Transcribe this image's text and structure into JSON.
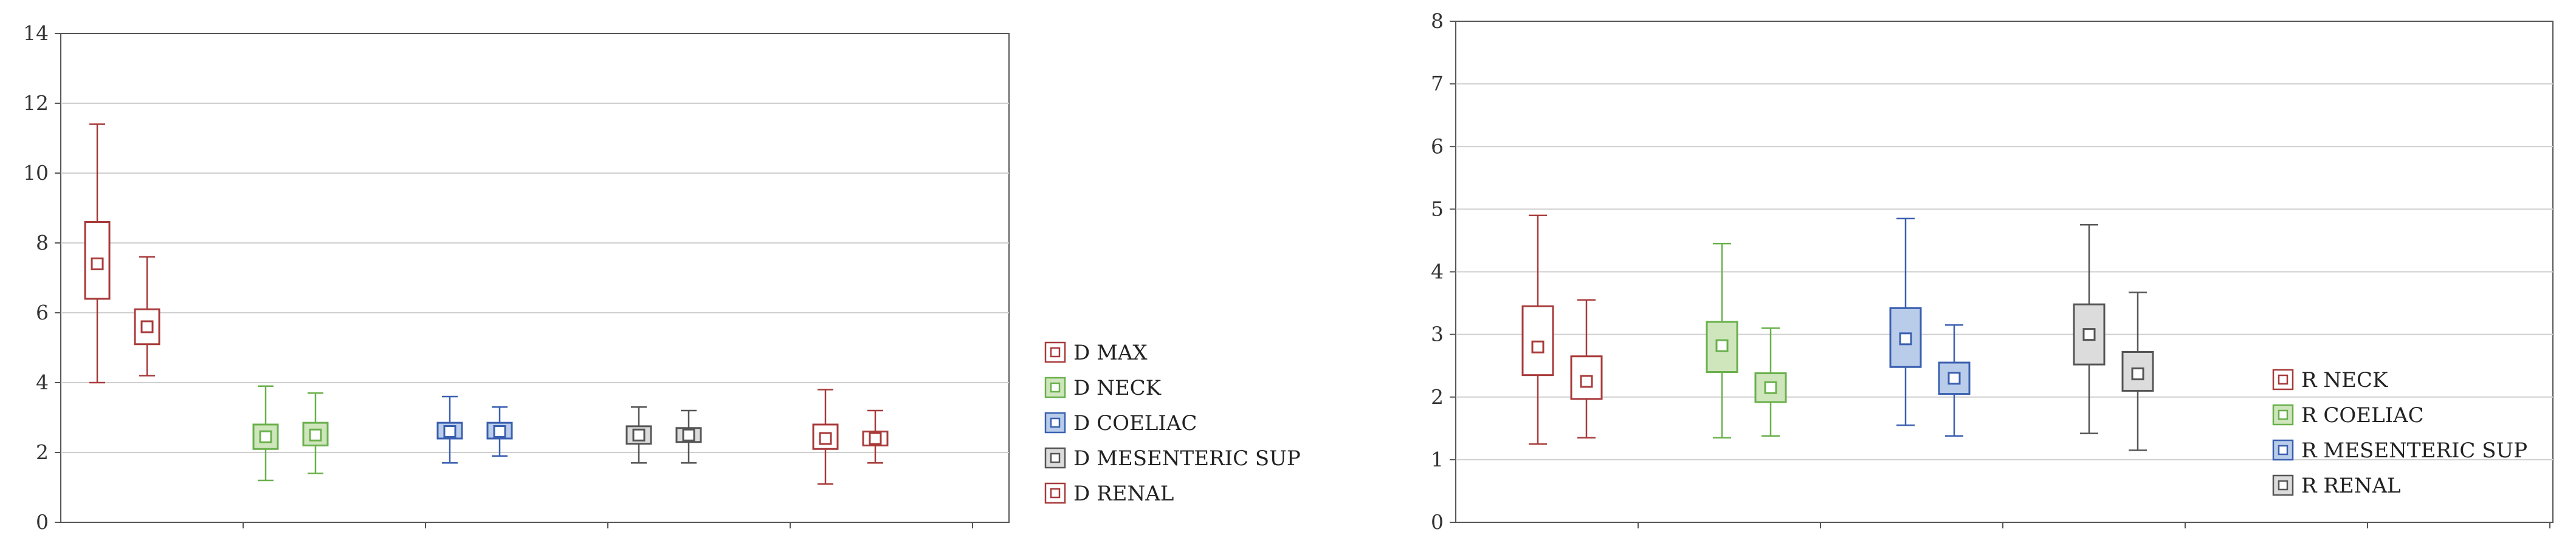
{
  "chart_data": [
    {
      "type": "box",
      "title": "",
      "xlabel": "",
      "ylabel": "",
      "ylim": [
        0,
        14
      ],
      "yticks": [
        0,
        2,
        4,
        6,
        8,
        10,
        12,
        14
      ],
      "grid": "horizontal",
      "legend_position": "right",
      "series": [
        {
          "name": "D MAX",
          "color": "#a83a3a",
          "fill": "#ffffff",
          "boxes": [
            {
              "min": 4.0,
              "q1": 6.4,
              "median": 7.4,
              "q3": 8.6,
              "max": 11.4
            },
            {
              "min": 4.2,
              "q1": 5.1,
              "median": 5.6,
              "q3": 6.1,
              "max": 7.6
            }
          ]
        },
        {
          "name": "D NECK",
          "color": "#6ab04c",
          "fill": "#cfe6bd",
          "boxes": [
            {
              "min": 1.2,
              "q1": 2.1,
              "median": 2.45,
              "q3": 2.8,
              "max": 3.9
            },
            {
              "min": 1.4,
              "q1": 2.2,
              "median": 2.5,
              "q3": 2.85,
              "max": 3.7
            }
          ]
        },
        {
          "name": "D COELIAC",
          "color": "#3a5fb0",
          "fill": "#b9cdea",
          "boxes": [
            {
              "min": 1.7,
              "q1": 2.4,
              "median": 2.6,
              "q3": 2.85,
              "max": 3.6
            },
            {
              "min": 1.9,
              "q1": 2.4,
              "median": 2.6,
              "q3": 2.85,
              "max": 3.3
            }
          ]
        },
        {
          "name": "D MESENTERIC SUP",
          "color": "#555555",
          "fill": "#dcdcdc",
          "boxes": [
            {
              "min": 1.7,
              "q1": 2.25,
              "median": 2.5,
              "q3": 2.75,
              "max": 3.3
            },
            {
              "min": 1.7,
              "q1": 2.3,
              "median": 2.5,
              "q3": 2.7,
              "max": 3.2
            }
          ]
        },
        {
          "name": "D RENAL",
          "color": "#a83a3a",
          "fill": "#ffffff",
          "boxes": [
            {
              "min": 1.1,
              "q1": 2.1,
              "median": 2.4,
              "q3": 2.8,
              "max": 3.8
            },
            {
              "min": 1.7,
              "q1": 2.2,
              "median": 2.4,
              "q3": 2.6,
              "max": 3.2
            }
          ]
        }
      ]
    },
    {
      "type": "box",
      "title": "",
      "xlabel": "",
      "ylabel": "",
      "ylim": [
        0,
        8
      ],
      "yticks": [
        0,
        1,
        2,
        3,
        4,
        5,
        6,
        7,
        8
      ],
      "grid": "horizontal",
      "legend_position": "right",
      "series": [
        {
          "name": "R NECK",
          "color": "#a83a3a",
          "fill": "#ffffff",
          "boxes": [
            {
              "min": 1.25,
              "q1": 2.35,
              "median": 2.8,
              "q3": 3.45,
              "max": 4.9
            },
            {
              "min": 1.35,
              "q1": 1.97,
              "median": 2.25,
              "q3": 2.65,
              "max": 3.55
            }
          ]
        },
        {
          "name": "R COELIAC",
          "color": "#6ab04c",
          "fill": "#cfe6bd",
          "boxes": [
            {
              "min": 1.35,
              "q1": 2.4,
              "median": 2.82,
              "q3": 3.2,
              "max": 4.45
            },
            {
              "min": 1.38,
              "q1": 1.92,
              "median": 2.15,
              "q3": 2.38,
              "max": 3.1
            }
          ]
        },
        {
          "name": "R MESENTERIC SUP",
          "color": "#3a5fb0",
          "fill": "#b9cdea",
          "boxes": [
            {
              "min": 1.55,
              "q1": 2.48,
              "median": 2.93,
              "q3": 3.42,
              "max": 4.85
            },
            {
              "min": 1.38,
              "q1": 2.05,
              "median": 2.3,
              "q3": 2.55,
              "max": 3.15
            }
          ]
        },
        {
          "name": "R RENAL",
          "color": "#555555",
          "fill": "#dcdcdc",
          "boxes": [
            {
              "min": 1.42,
              "q1": 2.52,
              "median": 3.0,
              "q3": 3.48,
              "max": 4.75
            },
            {
              "min": 1.15,
              "q1": 2.1,
              "median": 2.37,
              "q3": 2.72,
              "max": 3.67
            }
          ]
        }
      ]
    }
  ]
}
